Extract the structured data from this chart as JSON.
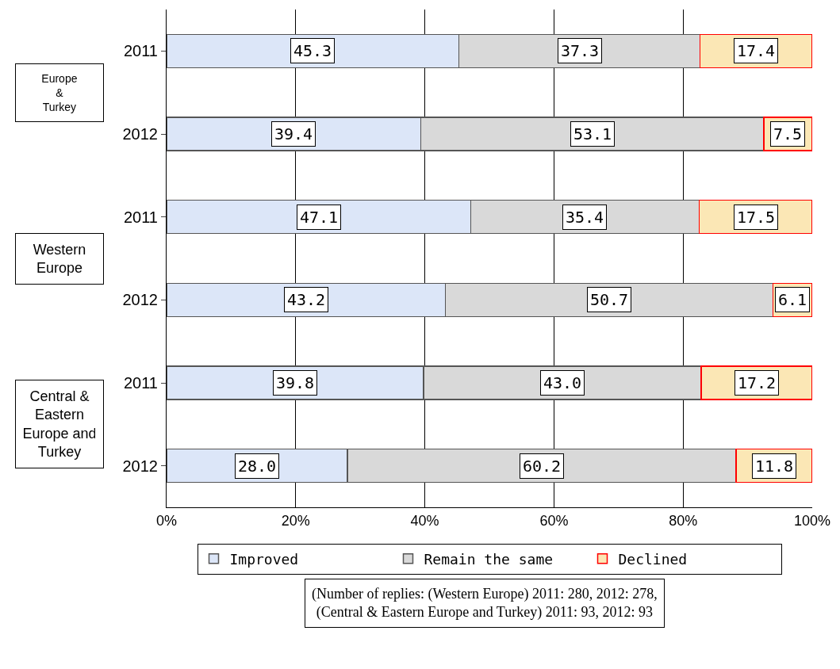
{
  "chart_data": {
    "type": "bar",
    "orientation": "horizontal",
    "stacked": true,
    "categories": [
      "2011",
      "2012",
      "2011",
      "2012",
      "2011",
      "2012"
    ],
    "series": [
      {
        "name": "Improved",
        "color": "#dce6f8",
        "values": [
          45.3,
          39.4,
          47.1,
          43.2,
          39.8,
          28.0
        ],
        "value_labels": [
          "45.3",
          "39.4",
          "47.1",
          "43.2",
          "39.8",
          "28.0"
        ]
      },
      {
        "name": "Remain the same",
        "color": "#d9d9d9",
        "values": [
          37.3,
          53.1,
          35.4,
          50.7,
          43.0,
          60.2
        ],
        "value_labels": [
          "37.3",
          "53.1",
          "35.4",
          "50.7",
          "43.0",
          "60.2"
        ]
      },
      {
        "name": "Declined",
        "color": "#fbe7b5",
        "values": [
          17.4,
          7.5,
          17.5,
          6.1,
          17.2,
          11.8
        ],
        "value_labels": [
          "17.4",
          "7.5",
          "17.5",
          "6.1",
          "17.2",
          "11.8"
        ]
      }
    ],
    "xlim": [
      0,
      100
    ],
    "xticks": [
      {
        "value": 0,
        "label": "0%"
      },
      {
        "value": 20,
        "label": "20%"
      },
      {
        "value": 40,
        "label": "40%"
      },
      {
        "value": 60,
        "label": "60%"
      },
      {
        "value": 80,
        "label": "80%"
      },
      {
        "value": 100,
        "label": "100%"
      }
    ],
    "grid": "x",
    "legend": "bottom",
    "annotations": [
      "Europe\n&\nTurkey",
      "Western\nEurope",
      "Central &\nEastern\nEurope and\nTurkey",
      "(Number of replies: (Western Europe) 2011: 280, 2012: 278,\n(Central & Eastern Europe and Turkey) 2011: 93, 2012: 93"
    ]
  }
}
